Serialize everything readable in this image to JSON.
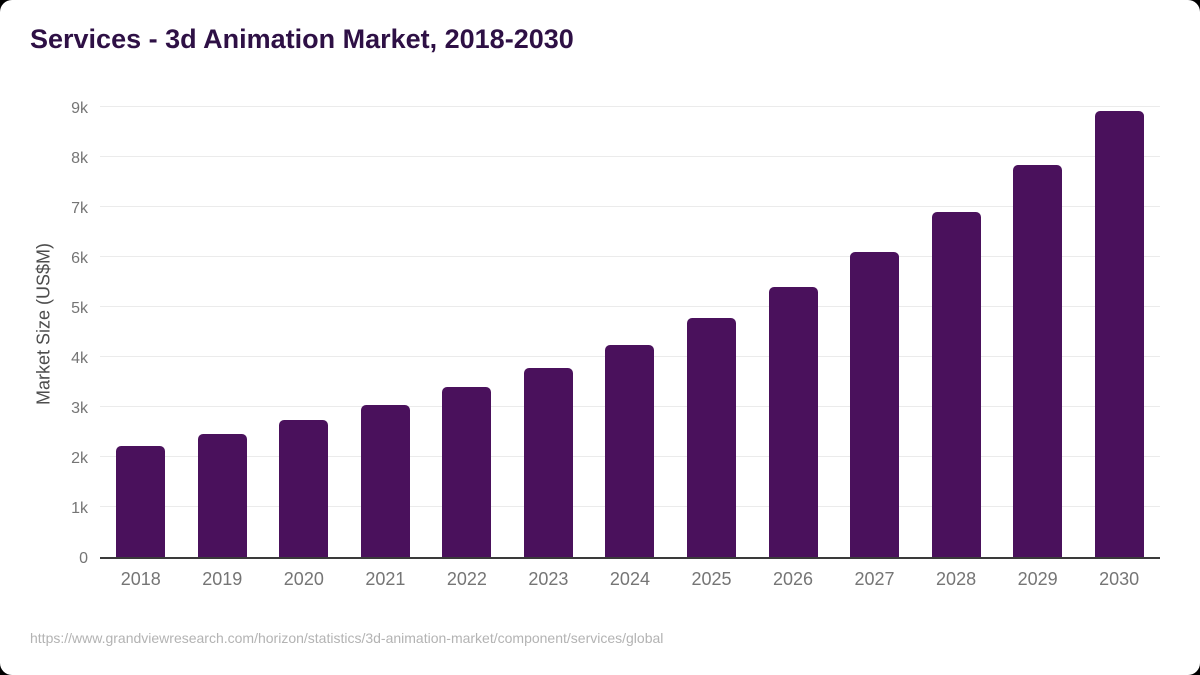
{
  "header": {
    "title": "Services - 3d Animation Market, 2018-2030"
  },
  "footer": {
    "source_url": "https://www.grandviewresearch.com/horizon/statistics/3d-animation-market/component/services/global"
  },
  "chart_data": {
    "type": "bar",
    "title": "Services - 3d Animation Market, 2018-2030",
    "categories": [
      "2018",
      "2019",
      "2020",
      "2021",
      "2022",
      "2023",
      "2024",
      "2025",
      "2026",
      "2027",
      "2028",
      "2029",
      "2030"
    ],
    "values": [
      2220,
      2460,
      2740,
      3050,
      3400,
      3790,
      4250,
      4790,
      5400,
      6100,
      6910,
      7850,
      8930
    ],
    "xlabel": "",
    "ylabel": "Market Size (US$M)",
    "ylim": [
      0,
      9400
    ],
    "ytick_step": 1000,
    "ytick_labels": [
      "0",
      "1k",
      "2k",
      "3k",
      "4k",
      "5k",
      "6k",
      "7k",
      "8k",
      "9k"
    ],
    "grid": true,
    "legend": false,
    "bar_color": "#4a115c"
  },
  "colors": {
    "page_background": "#000000",
    "card_background": "#ffffff",
    "title_text": "#2e1045",
    "bar_fill": "#4a115c",
    "tick_label": "#757575",
    "axis_title": "#4d4d4d",
    "gridline": "#ebebeb",
    "axis_line": "#3a3a3a",
    "source_text": "#b3b3b3"
  }
}
